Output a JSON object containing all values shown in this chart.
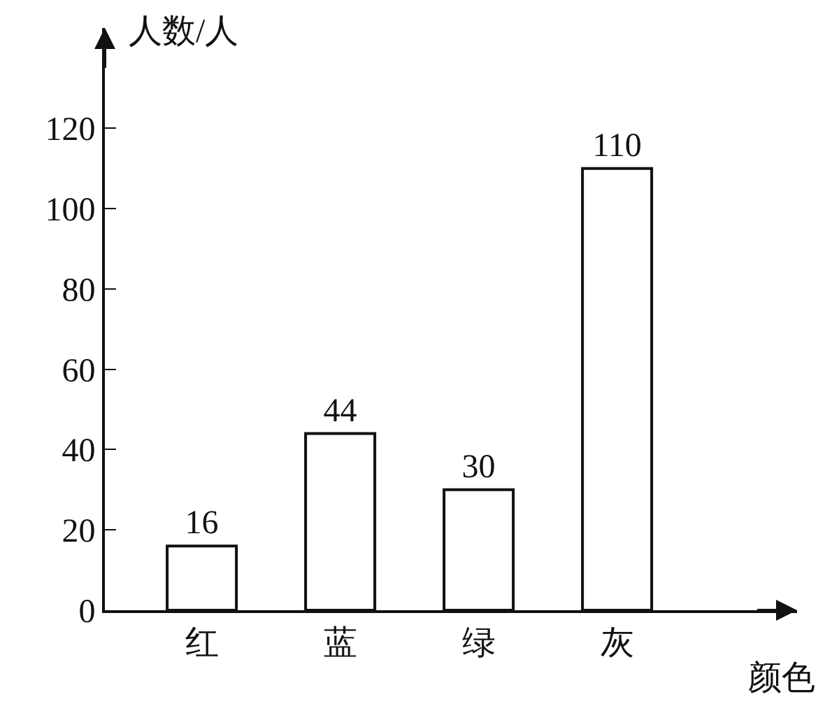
{
  "chart_data": {
    "type": "bar",
    "categories": [
      "红",
      "蓝",
      "绿",
      "灰"
    ],
    "values": [
      16,
      44,
      30,
      110
    ],
    "color": "#ffffff",
    "ylim": [
      0,
      145
    ],
    "yticks": [
      0,
      20,
      40,
      60,
      80,
      100,
      120
    ],
    "xlabel": "颜色",
    "ylabel": "人数/人",
    "data_labels": true,
    "grid": false,
    "legend": false
  }
}
